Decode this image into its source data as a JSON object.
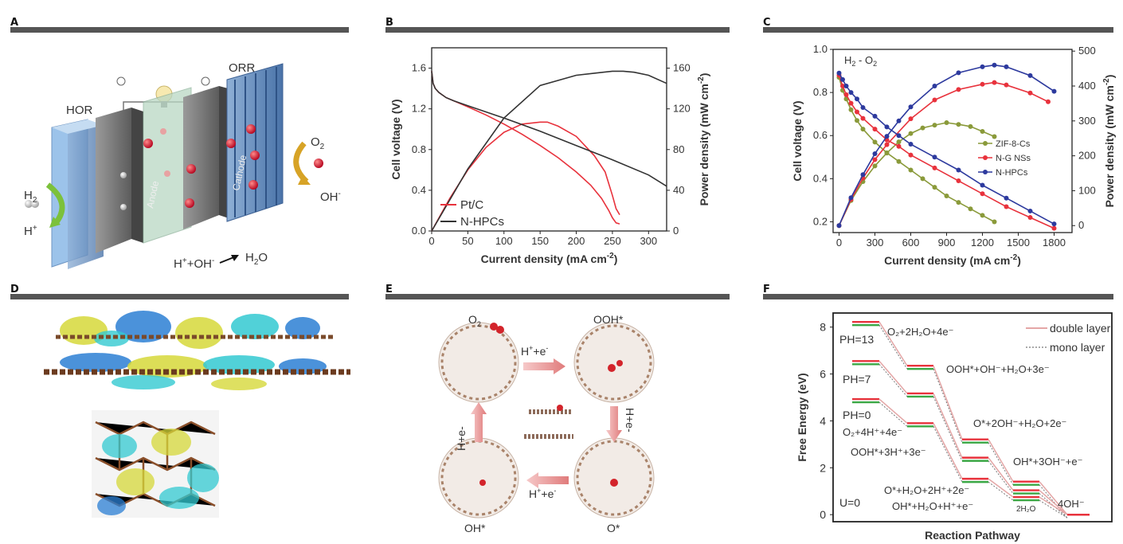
{
  "panels": {
    "A": {
      "label": "A",
      "texts": {
        "hor": "HOR",
        "orr": "ORR",
        "h2": "H",
        "h2sub": "2",
        "hplus": "H",
        "hplus_sup": "+",
        "o2": "O",
        "o2sub": "2",
        "oh": "OH",
        "oh_sup": "-",
        "anode": "Anode",
        "cathode": "Cathode",
        "eq_h": "H",
        "eq_hsup": "+",
        "eq_plus": "+OH",
        "eq_ohsup": "-",
        "h2o": "H",
        "h2osub": "2",
        "h2o_o": "O"
      }
    },
    "B": {
      "label": "B"
    },
    "C": {
      "label": "C",
      "annotation": "H",
      "annotation_sub": "2",
      "annotation_rest": " - O",
      "annotation_sub2": "2"
    },
    "D": {
      "label": "D"
    },
    "E": {
      "label": "E",
      "texts": {
        "o2": "O",
        "o2sub": "2",
        "ooh": "OOH*",
        "oh": "OH*",
        "o": "O*",
        "step_top": "H",
        "step_top_sup1": "+",
        "step_top_mid": "+e",
        "step_top_sup2": "-",
        "step_bottom": "H",
        "step_bottom_sup1": "+",
        "step_bottom_mid": "+e",
        "step_bottom_sup2": "-",
        "step_left": "H+e-",
        "step_right": "H+e-"
      }
    },
    "F": {
      "label": "F"
    }
  },
  "colors": {
    "red": "#e8323c",
    "dark": "#333333",
    "olive": "#8a9a3a",
    "blue": "#2d3a9e",
    "panel_bar": "#555555"
  },
  "chart_data": [
    {
      "panel": "B",
      "type": "line",
      "xlabel": "Current density (mA cm",
      "xlabel_sup": "-2",
      "xlabel_end": ")",
      "ylabel": "Cell voltage (V)",
      "y2label": "Power density (mW cm",
      "y2label_sup": "-2",
      "y2label_end": ")",
      "xlim": [
        0,
        325
      ],
      "ylim": [
        0,
        1.8
      ],
      "y2lim": [
        0,
        180
      ],
      "xticks": [
        "0",
        "50",
        "100",
        "150",
        "200",
        "250",
        "300"
      ],
      "yticks": [
        "0.0",
        "0.4",
        "0.8",
        "1.2",
        "1.6"
      ],
      "y2ticks": [
        "0",
        "40",
        "80",
        "120",
        "160"
      ],
      "legend": [
        "Pt/C",
        "N-HPCs"
      ],
      "series": [
        {
          "name": "Pt/C",
          "axis": "left",
          "color": "#e8323c",
          "x": [
            0,
            2,
            5,
            10,
            20,
            30,
            50,
            75,
            100,
            125,
            150,
            175,
            200,
            220,
            235,
            245,
            250,
            255,
            260
          ],
          "y": [
            1.57,
            1.45,
            1.4,
            1.36,
            1.31,
            1.28,
            1.22,
            1.14,
            1.05,
            0.95,
            0.84,
            0.72,
            0.58,
            0.45,
            0.32,
            0.2,
            0.13,
            0.08,
            0.07
          ]
        },
        {
          "name": "Pt/C",
          "axis": "right",
          "color": "#e8323c",
          "x": [
            0,
            25,
            50,
            75,
            100,
            125,
            150,
            160,
            175,
            200,
            225,
            240,
            250,
            255,
            260
          ],
          "y": [
            0,
            32,
            60,
            82,
            97,
            105,
            107,
            107,
            103,
            93,
            74,
            58,
            35,
            22,
            16
          ]
        },
        {
          "name": "N-HPCs",
          "axis": "left",
          "color": "#333333",
          "x": [
            0,
            2,
            5,
            10,
            20,
            30,
            50,
            75,
            100,
            150,
            200,
            250,
            300,
            325
          ],
          "y": [
            1.57,
            1.45,
            1.4,
            1.36,
            1.31,
            1.28,
            1.23,
            1.17,
            1.11,
            0.98,
            0.84,
            0.7,
            0.55,
            0.44
          ]
        },
        {
          "name": "N-HPCs",
          "axis": "right",
          "color": "#333333",
          "x": [
            0,
            50,
            100,
            150,
            200,
            225,
            250,
            265,
            280,
            300,
            325
          ],
          "y": [
            0,
            61,
            111,
            143,
            153,
            155,
            157,
            157,
            156,
            153,
            145
          ]
        }
      ]
    },
    {
      "panel": "C",
      "type": "line",
      "xlabel": "Current density (mA cm",
      "xlabel_sup": "-2",
      "xlabel_end": ")",
      "ylabel": "Cell voltage (V)",
      "y2label": "Power density (mW cm",
      "y2label_sup": "-2",
      "y2label_end": ")",
      "xlim": [
        -50,
        1950
      ],
      "ylim": [
        0.15,
        1.0
      ],
      "y2lim": [
        -20,
        505
      ],
      "xticks": [
        "0",
        "300",
        "600",
        "900",
        "1200",
        "1500",
        "1800"
      ],
      "yticks": [
        "0.2",
        "0.4",
        "0.6",
        "0.8",
        "1.0"
      ],
      "y2ticks": [
        "0",
        "100",
        "200",
        "300",
        "400",
        "500"
      ],
      "legend": [
        "ZIF-8-Cs",
        "N-G NSs",
        "N-HPCs"
      ],
      "series": [
        {
          "name": "ZIF-8-Cs",
          "axis": "left",
          "color": "#8a9a3a",
          "x": [
            0,
            30,
            60,
            100,
            150,
            200,
            300,
            400,
            500,
            600,
            700,
            800,
            900,
            1000,
            1100,
            1200,
            1300
          ],
          "y": [
            0.87,
            0.81,
            0.77,
            0.72,
            0.67,
            0.63,
            0.57,
            0.52,
            0.48,
            0.44,
            0.4,
            0.36,
            0.32,
            0.29,
            0.26,
            0.23,
            0.2
          ]
        },
        {
          "name": "ZIF-8-Cs",
          "axis": "right",
          "color": "#8a9a3a",
          "x": [
            0,
            100,
            200,
            300,
            400,
            500,
            600,
            700,
            800,
            900,
            1000,
            1100,
            1200,
            1300
          ],
          "y": [
            0,
            72,
            126,
            171,
            208,
            240,
            264,
            280,
            288,
            295,
            290,
            284,
            270,
            255
          ]
        },
        {
          "name": "N-G NSs",
          "axis": "left",
          "color": "#e8323c",
          "x": [
            0,
            30,
            60,
            100,
            150,
            200,
            300,
            400,
            500,
            600,
            800,
            1000,
            1200,
            1400,
            1600,
            1800
          ],
          "y": [
            0.88,
            0.83,
            0.79,
            0.75,
            0.71,
            0.68,
            0.63,
            0.58,
            0.55,
            0.51,
            0.45,
            0.39,
            0.33,
            0.27,
            0.22,
            0.17
          ]
        },
        {
          "name": "N-G NSs",
          "axis": "right",
          "color": "#e8323c",
          "x": [
            0,
            100,
            200,
            300,
            400,
            600,
            800,
            1000,
            1200,
            1300,
            1400,
            1600,
            1750
          ],
          "y": [
            0,
            75,
            136,
            189,
            232,
            306,
            360,
            390,
            405,
            410,
            403,
            380,
            355
          ]
        },
        {
          "name": "N-HPCs",
          "axis": "left",
          "color": "#2d3a9e",
          "x": [
            0,
            30,
            60,
            100,
            150,
            200,
            300,
            400,
            500,
            600,
            800,
            1000,
            1200,
            1400,
            1600,
            1800
          ],
          "y": [
            0.89,
            0.86,
            0.83,
            0.8,
            0.77,
            0.73,
            0.69,
            0.64,
            0.6,
            0.56,
            0.5,
            0.44,
            0.37,
            0.31,
            0.25,
            0.19
          ]
        },
        {
          "name": "N-HPCs",
          "axis": "right",
          "color": "#2d3a9e",
          "x": [
            0,
            100,
            200,
            300,
            400,
            500,
            600,
            800,
            1000,
            1200,
            1300,
            1400,
            1600,
            1800
          ],
          "y": [
            0,
            80,
            146,
            206,
            256,
            300,
            340,
            400,
            438,
            455,
            460,
            455,
            430,
            385
          ]
        }
      ]
    },
    {
      "panel": "F",
      "type": "line",
      "xlabel": "Reaction Pathway",
      "ylabel": "Free Energy (eV)",
      "ylim": [
        -0.3,
        8.6
      ],
      "yticks": [
        "0",
        "2",
        "4",
        "6",
        "8"
      ],
      "legend": [
        "double layer",
        "mono layer"
      ],
      "pathways": [
        {
          "name": "PH=13",
          "levels": [
            8.22,
            6.35,
            3.21,
            1.41,
            0
          ]
        },
        {
          "name": "PH=7",
          "levels": [
            6.55,
            5.17,
            2.43,
            1.04,
            0
          ]
        },
        {
          "name": "PH=0",
          "levels": [
            4.93,
            3.9,
            1.53,
            0.75,
            0
          ]
        }
      ],
      "labels": {
        "ph13": "PH=13",
        "ph7": "PH=7",
        "ph0": "PH=0",
        "u0": "U=0",
        "s13": "O₂+2H₂O+4e⁻",
        "s13b": "OOH*+OH⁻+H₂O+3e⁻",
        "s13c": "O*+2OH⁻+H₂O+2e⁻",
        "s13d": "OH*+3OH⁻+e⁻",
        "s13e": "4OH⁻",
        "s0a": "O₂+4H⁺+4e⁻",
        "s0b": "OOH*+3H⁺+3e⁻",
        "s0c": "O*+H₂O+2H⁺+2e⁻",
        "s0d": "OH*+H₂O+H⁺+e⁻",
        "s0e": "2H₂O"
      }
    }
  ]
}
